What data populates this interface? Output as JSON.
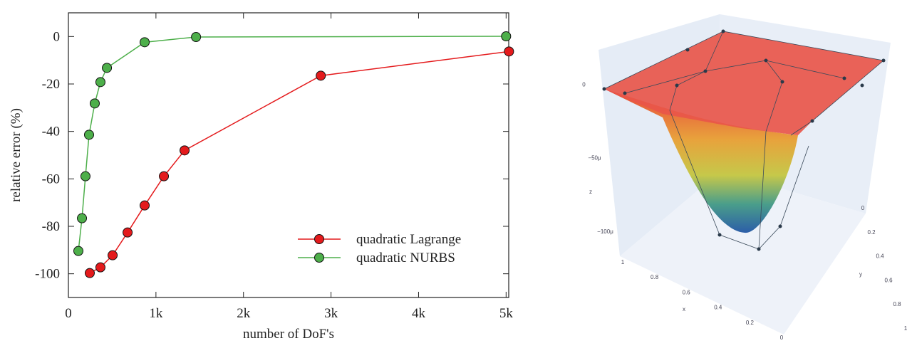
{
  "chart_data": [
    {
      "type": "line",
      "xlabel": "number of DoF's",
      "ylabel": "relative error (%)",
      "xlim": [
        0,
        5030
      ],
      "ylim": [
        -110,
        10
      ],
      "xticks": [
        0,
        {
          "value": 1000,
          "label": "1k"
        },
        {
          "value": 2000,
          "label": "2k"
        },
        {
          "value": 3000,
          "label": "3k"
        },
        {
          "value": 4000,
          "label": "4k"
        },
        {
          "value": 5000,
          "label": "5k"
        }
      ],
      "yticks": [
        0,
        -20,
        -40,
        -60,
        -80,
        -100
      ],
      "legend": "lower right",
      "series": [
        {
          "name": "quadratic Lagrange",
          "color": "#e41a1c",
          "x": [
            244,
            366,
            505,
            676,
            871,
            1091,
            1327,
            2883,
            5033
          ],
          "values": [
            -99.7,
            -97.3,
            -92.2,
            -82.6,
            -71.2,
            -58.9,
            -48,
            -16.5,
            -6.3
          ]
        },
        {
          "name": "quadratic NURBS",
          "color": "#4daf4a",
          "x": [
            114,
            155,
            195,
            236,
            301,
            366,
            440,
            871,
            1458,
            5000
          ],
          "values": [
            -90.4,
            -76.6,
            -58.9,
            -41.4,
            -28.2,
            -19.2,
            -13.2,
            -2.4,
            -0.2,
            0.1
          ]
        }
      ]
    },
    {
      "type": "surface",
      "xlabel": "x",
      "ylabel": "y",
      "zlabel": "z",
      "xlim": [
        0,
        1
      ],
      "ylim": [
        0,
        1
      ],
      "zlim": [
        -0.000115,
        5e-06
      ],
      "xticks": [
        0,
        0.2,
        0.4,
        0.6,
        0.8,
        1
      ],
      "yticks": [
        0,
        0.2,
        0.4,
        0.6,
        0.8,
        1
      ],
      "zticks": [
        {
          "value": 0,
          "label": "0"
        },
        {
          "value": -5e-05,
          "label": "−50μ"
        },
        {
          "value": -0.0001,
          "label": "−100μ"
        }
      ]
    }
  ]
}
